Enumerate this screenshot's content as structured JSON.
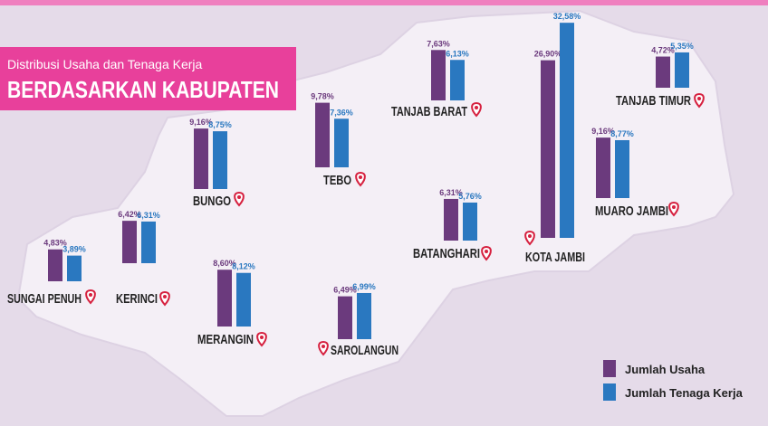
{
  "chart_data": {
    "type": "bar",
    "subtitle": "Distribusi Usaha dan Tenaga Kerja",
    "title": "BERDASARKAN KABUPATEN",
    "categories": [
      "SUNGAI PENUH",
      "KERINCI",
      "BUNGO",
      "MERANGIN",
      "TEBO",
      "SAROLANGUN",
      "TANJAB BARAT",
      "BATANGHARI",
      "KOTA JAMBI",
      "TANJAB TIMUR",
      "MUARO JAMBI"
    ],
    "series": [
      {
        "name": "Jumlah Usaha",
        "color": "#6b3a7d",
        "values": [
          4.83,
          6.42,
          9.16,
          8.6,
          9.78,
          6.49,
          7.63,
          6.31,
          26.9,
          4.72,
          9.16
        ],
        "value_labels": [
          "4,83%",
          "6,42%",
          "9,16%",
          "8,60%",
          "9,78%",
          "6,49%",
          "7,63%",
          "6,31%",
          "26,90%",
          "4,72%",
          "9,16%"
        ]
      },
      {
        "name": "Jumlah Tenaga Kerja",
        "color": "#2a78c0",
        "values": [
          3.89,
          6.31,
          8.75,
          8.12,
          7.36,
          6.99,
          6.13,
          5.76,
          32.58,
          5.35,
          8.77
        ],
        "value_labels": [
          "3,89%",
          "6,31%",
          "8,75%",
          "8,12%",
          "7,36%",
          "6,99%",
          "6,13%",
          "5,76%",
          "32,58%",
          "5,35%",
          "8,77%"
        ]
      }
    ]
  }
}
